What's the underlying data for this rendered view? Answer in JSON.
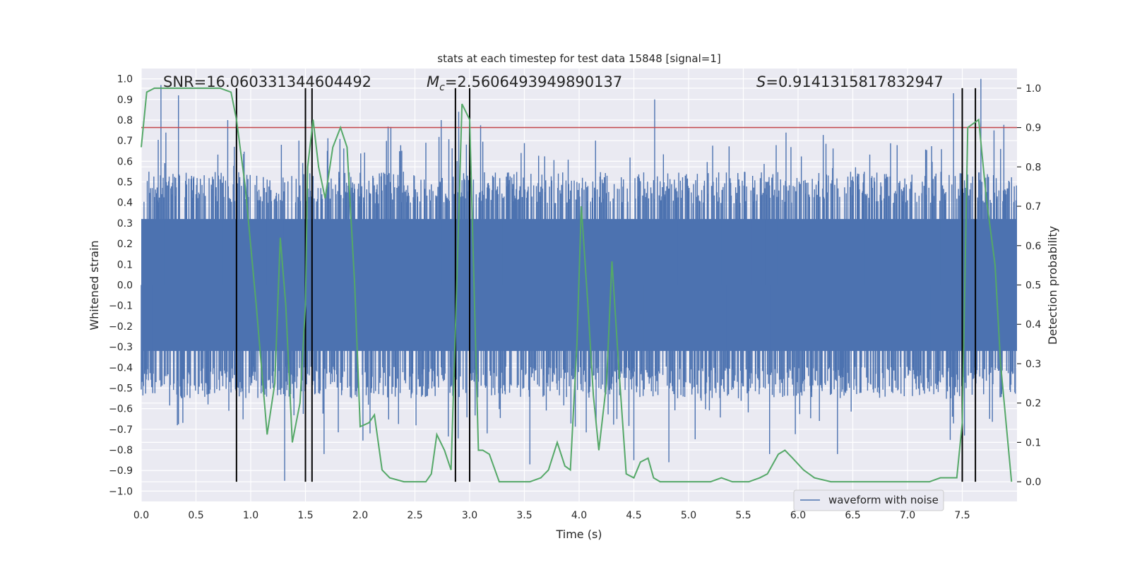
{
  "chart_data": {
    "type": "line",
    "title": "stats at each timestep for test data 15848 [signal=1]",
    "xlabel": "Time (s)",
    "ylabel_left": "Whitened strain",
    "ylabel_right": "Detection probability",
    "xlim": [
      0.0,
      8.0
    ],
    "ylim_left": [
      -1.05,
      1.05
    ],
    "ylim_right": [
      -0.05,
      1.05
    ],
    "x_ticks": [
      0.0,
      0.5,
      1.0,
      1.5,
      2.0,
      2.5,
      3.0,
      3.5,
      4.0,
      4.5,
      5.0,
      5.5,
      6.0,
      6.5,
      7.0,
      7.5
    ],
    "x_tick_labels": [
      "0.0",
      "0.5",
      "1.0",
      "1.5",
      "2.0",
      "2.5",
      "3.0",
      "3.5",
      "4.0",
      "4.5",
      "5.0",
      "5.5",
      "6.0",
      "6.5",
      "7.0",
      "7.5"
    ],
    "y_left_ticks": [
      1.0,
      0.9,
      0.8,
      0.7,
      0.6,
      0.5,
      0.4,
      0.3,
      0.2,
      0.1,
      0.0,
      -0.1,
      -0.2,
      -0.3,
      -0.4,
      -0.5,
      -0.6,
      -0.7,
      -0.8,
      -0.9,
      -1.0
    ],
    "y_left_tick_labels": [
      "1.0",
      "0.9",
      "0.8",
      "0.7",
      "0.6",
      "0.5",
      "0.4",
      "0.3",
      "0.2",
      "0.1",
      "0.0",
      "−0.1",
      "−0.2",
      "−0.3",
      "−0.4",
      "−0.5",
      "−0.6",
      "−0.7",
      "−0.8",
      "−0.9",
      "−1.0"
    ],
    "y_right_ticks": [
      1.0,
      0.9,
      0.8,
      0.7,
      0.6,
      0.5,
      0.4,
      0.3,
      0.2,
      0.1,
      0.0
    ],
    "y_right_tick_labels": [
      "1.0",
      "0.9",
      "0.8",
      "0.7",
      "0.6",
      "0.5",
      "0.4",
      "0.3",
      "0.2",
      "0.1",
      "0.0"
    ],
    "annotations": {
      "snr": "SNR=16.060331344604492",
      "mc_symbol": "M",
      "mc_subscript": "c",
      "mc_value": "=2.5606493949890137",
      "s_symbol": "S",
      "s_value": "=0.9141315817832947"
    },
    "threshold": {
      "value": 0.9,
      "axis": "right",
      "color": "#c44e52"
    },
    "vertical_markers_s": [
      0.87,
      1.5,
      1.56,
      2.87,
      3.0,
      7.5,
      7.62
    ],
    "waveform": {
      "name": "waveform with noise",
      "color": "#4c72b0",
      "duration_s": 8.0,
      "bulk_envelope": 0.55,
      "spikes": [
        [
          0.18,
          0.97
        ],
        [
          0.34,
          0.92
        ],
        [
          0.79,
          0.8
        ],
        [
          0.85,
          0.67
        ],
        [
          1.28,
          0.68
        ],
        [
          1.31,
          -0.95
        ],
        [
          1.44,
          0.7
        ],
        [
          1.67,
          -0.82
        ],
        [
          2.09,
          -0.72
        ],
        [
          2.6,
          0.69
        ],
        [
          2.74,
          0.8
        ],
        [
          2.9,
          0.84
        ],
        [
          3.16,
          -0.72
        ],
        [
          3.55,
          -0.87
        ],
        [
          4.15,
          0.7
        ],
        [
          4.5,
          -0.85
        ],
        [
          4.69,
          0.9
        ],
        [
          4.82,
          -0.86
        ],
        [
          5.74,
          -0.82
        ],
        [
          6.36,
          -0.82
        ],
        [
          7.42,
          0.93
        ],
        [
          7.52,
          -0.73
        ],
        [
          7.67,
          1.0
        ],
        [
          7.79,
          0.75
        ],
        [
          7.85,
          0.66
        ]
      ]
    },
    "probability": {
      "name": "detection probability",
      "color": "#55a868",
      "x": [
        0.0,
        0.05,
        0.12,
        0.2,
        0.4,
        0.6,
        0.72,
        0.82,
        0.87,
        0.95,
        1.05,
        1.15,
        1.22,
        1.27,
        1.32,
        1.38,
        1.45,
        1.5,
        1.52,
        1.57,
        1.62,
        1.68,
        1.75,
        1.82,
        1.88,
        1.95,
        2.0,
        2.08,
        2.13,
        2.2,
        2.27,
        2.4,
        2.6,
        2.65,
        2.7,
        2.77,
        2.83,
        2.88,
        2.93,
        3.0,
        3.08,
        3.12,
        3.18,
        3.27,
        3.33,
        3.4,
        3.55,
        3.65,
        3.72,
        3.8,
        3.87,
        3.92,
        3.98,
        4.02,
        4.08,
        4.13,
        4.18,
        4.25,
        4.3,
        4.36,
        4.43,
        4.5,
        4.56,
        4.63,
        4.68,
        4.74,
        4.8,
        4.9,
        5.1,
        5.2,
        5.3,
        5.4,
        5.55,
        5.65,
        5.72,
        5.82,
        5.88,
        5.95,
        6.05,
        6.15,
        6.3,
        6.5,
        6.7,
        7.0,
        7.2,
        7.3,
        7.38,
        7.45,
        7.5,
        7.55,
        7.65,
        7.72,
        7.8,
        7.85,
        7.95
      ],
      "y": [
        0.85,
        0.99,
        1.0,
        1.0,
        1.0,
        1.0,
        1.0,
        0.99,
        0.92,
        0.75,
        0.45,
        0.12,
        0.25,
        0.62,
        0.45,
        0.1,
        0.2,
        0.45,
        0.8,
        0.92,
        0.8,
        0.72,
        0.85,
        0.9,
        0.85,
        0.5,
        0.14,
        0.15,
        0.17,
        0.03,
        0.01,
        0.0,
        0.0,
        0.02,
        0.12,
        0.08,
        0.03,
        0.48,
        0.96,
        0.92,
        0.08,
        0.08,
        0.07,
        0.0,
        0.0,
        0.0,
        0.0,
        0.01,
        0.03,
        0.1,
        0.04,
        0.03,
        0.35,
        0.7,
        0.45,
        0.22,
        0.08,
        0.25,
        0.56,
        0.3,
        0.02,
        0.01,
        0.05,
        0.06,
        0.01,
        0.0,
        0.0,
        0.0,
        0.0,
        0.0,
        0.01,
        0.0,
        0.0,
        0.01,
        0.02,
        0.07,
        0.08,
        0.06,
        0.03,
        0.01,
        0.0,
        0.0,
        0.0,
        0.0,
        0.0,
        0.01,
        0.01,
        0.01,
        0.15,
        0.9,
        0.92,
        0.72,
        0.55,
        0.3,
        0.0
      ]
    },
    "legend": {
      "label": "waveform with noise",
      "position": "lower-right"
    }
  }
}
